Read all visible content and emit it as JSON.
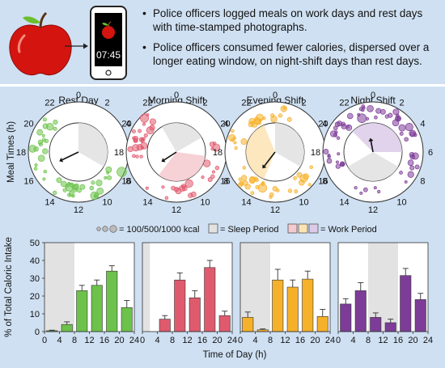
{
  "header": {
    "bullets": [
      "Police officers logged meals on work days and rest days with time-stamped photographs.",
      "Police officers consumed fewer calories, dispersed over a longer eating window, on night-shift days than rest days."
    ],
    "phone_time": "07:45"
  },
  "clock_titles": [
    "Rest Day",
    "Morning Shift",
    "Evening Shift",
    "Night Shift"
  ],
  "clock_hour_labels": [
    "0",
    "2",
    "4",
    "6",
    "8",
    "10",
    "12",
    "14",
    "16",
    "18",
    "20",
    "22"
  ],
  "clock_ylabel": "Meal Times (h)",
  "legend": {
    "size_label": "= 100/500/1000 kcal",
    "sleep_label": "= Sleep Period",
    "work_label": "= Work Period"
  },
  "colors": {
    "panel": "#cfe0f2",
    "rest": "#6cc24a",
    "morning": "#e05a6e",
    "evening": "#f6b12a",
    "night": "#7d3c98",
    "sleep": "#e2e2e2"
  },
  "chart_data": {
    "type": "bar",
    "ylabel": "% of Total Caloric Intake",
    "xlabel": "Time of Day (h)",
    "ylim": [
      0,
      50
    ],
    "yticks": [
      "0",
      "10",
      "20",
      "30",
      "40",
      "50"
    ],
    "xticks": [
      "0",
      "4",
      "8",
      "12",
      "16",
      "20",
      "24"
    ],
    "bin_centers": [
      2,
      6,
      10,
      14,
      18,
      22
    ],
    "series": [
      {
        "name": "Rest Day",
        "color": "#6cc24a",
        "values": [
          0.5,
          4,
          23,
          26,
          34,
          13.5
        ],
        "errors": [
          0.3,
          1.5,
          3,
          3,
          3,
          4
        ],
        "sleep": [
          0,
          8
        ]
      },
      {
        "name": "Morning Shift",
        "color": "#e05a6e",
        "values": [
          0,
          7,
          29,
          19,
          36,
          9
        ],
        "errors": [
          0,
          2,
          4,
          4,
          4,
          2.5
        ],
        "sleep": [
          0,
          2
        ]
      },
      {
        "name": "Evening Shift",
        "color": "#f6b12a",
        "values": [
          8,
          1,
          29,
          25,
          29.5,
          8.5
        ],
        "errors": [
          3,
          0.5,
          6,
          4,
          4.5,
          4
        ],
        "sleep": [
          0,
          8
        ]
      },
      {
        "name": "Night Shift",
        "color": "#7d3c98",
        "values": [
          15.5,
          23,
          8,
          5,
          31.5,
          18
        ],
        "errors": [
          3,
          4.5,
          2.5,
          2,
          4,
          3.5
        ],
        "sleep": [
          8,
          16
        ]
      }
    ]
  }
}
